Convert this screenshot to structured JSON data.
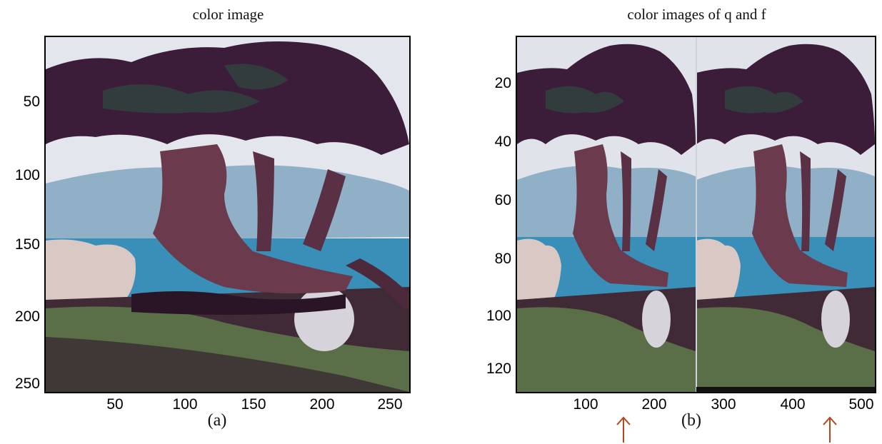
{
  "panel_a": {
    "title": "color image",
    "caption": "(a)",
    "y_ticks": [
      "50",
      "100",
      "150",
      "200",
      "250"
    ],
    "x_ticks": [
      "50",
      "100",
      "150",
      "200",
      "250"
    ]
  },
  "panel_b": {
    "title": "color images of q and f",
    "caption": "(b)",
    "y_ticks": [
      "20",
      "40",
      "60",
      "80",
      "100",
      "120"
    ],
    "x_ticks": [
      "100",
      "200",
      "300",
      "400",
      "500"
    ]
  },
  "colors": {
    "arrow": "#b5471b",
    "sky": "#e3e6ec",
    "sea": "#3a8fb8",
    "foliage": "#3b1d3a",
    "grass": "#5f7a4a"
  }
}
